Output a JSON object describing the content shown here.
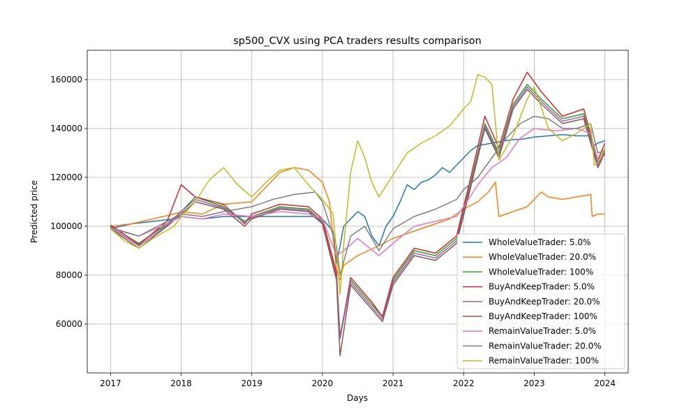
{
  "chart_data": {
    "type": "line",
    "title": "sp500_CVX using PCA traders results comparison",
    "xlabel": "Days",
    "ylabel": "Predicted price",
    "xlim": [
      2016.67,
      2024.33
    ],
    "ylim": [
      40000,
      172000
    ],
    "xticks": [
      2017,
      2018,
      2019,
      2020,
      2021,
      2022,
      2023,
      2024
    ],
    "xtick_labels": [
      "2017",
      "2018",
      "2019",
      "2020",
      "2021",
      "2022",
      "2023",
      "2024"
    ],
    "yticks": [
      60000,
      80000,
      100000,
      120000,
      140000,
      160000
    ],
    "ytick_labels": [
      "60000",
      "80000",
      "100000",
      "120000",
      "140000",
      "160000"
    ],
    "grid": true,
    "legend_position": "lower-right",
    "series": [
      {
        "name": "WholeValueTrader: 5.0%",
        "color": "#1f77b4",
        "x": [
          2017.0,
          2017.3,
          2017.6,
          2017.9,
          2018.0,
          2018.3,
          2018.6,
          2019.0,
          2019.3,
          2019.6,
          2019.9,
          2020.0,
          2020.15,
          2020.2,
          2020.25,
          2020.3,
          2020.4,
          2020.5,
          2020.6,
          2020.7,
          2020.8,
          2020.9,
          2021.0,
          2021.1,
          2021.2,
          2021.3,
          2021.4,
          2021.5,
          2021.6,
          2021.7,
          2021.8,
          2021.9,
          2022.0,
          2022.1,
          2022.2,
          2022.3,
          2022.4,
          2022.5,
          2022.6,
          2022.7,
          2022.8,
          2022.9,
          2023.0,
          2023.2,
          2023.4,
          2023.6,
          2023.8,
          2023.85,
          2023.9,
          2024.0
        ],
        "y": [
          99000,
          101000,
          102000,
          103000,
          104000,
          103000,
          104000,
          104000,
          104000,
          104000,
          104000,
          103000,
          98000,
          85000,
          92000,
          100000,
          103000,
          106000,
          104000,
          96000,
          92000,
          100000,
          104000,
          110000,
          117000,
          115000,
          118000,
          119000,
          121000,
          124000,
          122000,
          125000,
          128000,
          131000,
          133000,
          133500,
          134000,
          134500,
          135000,
          135500,
          135500,
          136000,
          136500,
          137000,
          137500,
          137000,
          137000,
          133000,
          134000,
          135000
        ]
      },
      {
        "name": "WholeValueTrader: 20.0%",
        "color": "#ff7f0e",
        "x": [
          2017.0,
          2017.3,
          2017.6,
          2017.9,
          2018.0,
          2018.3,
          2018.6,
          2019.0,
          2019.2,
          2019.4,
          2019.6,
          2019.8,
          2020.0,
          2020.1,
          2020.2,
          2020.25,
          2020.3,
          2020.5,
          2020.8,
          2021.0,
          2021.3,
          2021.6,
          2021.8,
          2022.0,
          2022.2,
          2022.35,
          2022.45,
          2022.5,
          2022.7,
          2022.9,
          2023.0,
          2023.1,
          2023.2,
          2023.4,
          2023.6,
          2023.8,
          2023.82,
          2023.9,
          2024.0
        ],
        "y": [
          100000,
          101000,
          103000,
          105000,
          106000,
          105000,
          109000,
          110000,
          116000,
          122000,
          124000,
          123000,
          118000,
          110000,
          82000,
          78000,
          84000,
          88000,
          92000,
          95000,
          98000,
          101000,
          103000,
          107000,
          110000,
          114000,
          118000,
          104000,
          106000,
          108000,
          111000,
          114000,
          112000,
          111000,
          112000,
          113000,
          104000,
          105000,
          105000
        ]
      },
      {
        "name": "WholeValueTrader: 100%",
        "color": "#2ca02c",
        "x": [
          2017.0,
          2017.4,
          2017.8,
          2018.0,
          2018.2,
          2018.6,
          2018.9,
          2019.0,
          2019.4,
          2019.8,
          2020.0,
          2020.2,
          2020.25,
          2020.4,
          2020.7,
          2020.85,
          2021.0,
          2021.3,
          2021.6,
          2021.9,
          2022.1,
          2022.3,
          2022.5,
          2022.7,
          2022.9,
          2023.1,
          2023.4,
          2023.7,
          2023.9,
          2024.0
        ],
        "y": [
          100000,
          93000,
          101000,
          106000,
          112000,
          108000,
          102000,
          104000,
          108000,
          107000,
          102000,
          80000,
          55000,
          78000,
          68000,
          63000,
          78000,
          90000,
          88000,
          95000,
          118000,
          142000,
          130000,
          150000,
          158000,
          152000,
          144000,
          146000,
          126000,
          132000
        ]
      },
      {
        "name": "BuyAndKeepTrader: 5.0%",
        "color": "#d62728",
        "x": [
          2017.0,
          2017.4,
          2017.8,
          2018.0,
          2018.2,
          2018.6,
          2018.9,
          2019.0,
          2019.4,
          2019.8,
          2020.0,
          2020.2,
          2020.25,
          2020.4,
          2020.7,
          2020.85,
          2021.0,
          2021.3,
          2021.6,
          2021.9,
          2022.1,
          2022.3,
          2022.5,
          2022.7,
          2022.9,
          2023.1,
          2023.4,
          2023.7,
          2023.9,
          2024.0
        ],
        "y": [
          100500,
          92500,
          102000,
          117000,
          112000,
          109000,
          101000,
          105000,
          109000,
          108000,
          103000,
          81000,
          54000,
          79000,
          69000,
          63000,
          79000,
          91000,
          89000,
          96000,
          120000,
          145000,
          132000,
          152000,
          163000,
          155000,
          145000,
          148000,
          127000,
          134000
        ]
      },
      {
        "name": "BuyAndKeepTrader: 20.0%",
        "color": "#9467bd",
        "x": [
          2017.0,
          2017.4,
          2017.8,
          2018.0,
          2018.2,
          2018.6,
          2018.9,
          2019.0,
          2019.4,
          2019.8,
          2020.0,
          2020.2,
          2020.25,
          2020.4,
          2020.7,
          2020.85,
          2021.0,
          2021.3,
          2021.6,
          2021.9,
          2022.1,
          2022.3,
          2022.5,
          2022.7,
          2022.9,
          2023.1,
          2023.4,
          2023.7,
          2023.9,
          2024.0
        ],
        "y": [
          99500,
          92000,
          100500,
          106000,
          111000,
          107500,
          101500,
          103500,
          107500,
          106500,
          101500,
          79000,
          54000,
          77000,
          67000,
          62000,
          77000,
          89000,
          87000,
          94000,
          117000,
          141000,
          129000,
          149000,
          157000,
          151000,
          143000,
          145000,
          125000,
          131000
        ]
      },
      {
        "name": "BuyAndKeepTrader: 100%",
        "color": "#8c564b",
        "x": [
          2017.0,
          2017.4,
          2017.8,
          2018.0,
          2018.2,
          2018.6,
          2018.9,
          2019.0,
          2019.4,
          2019.8,
          2020.0,
          2020.2,
          2020.25,
          2020.4,
          2020.7,
          2020.85,
          2021.0,
          2021.3,
          2021.6,
          2021.9,
          2022.1,
          2022.3,
          2022.5,
          2022.7,
          2022.9,
          2023.1,
          2023.4,
          2023.7,
          2023.9,
          2024.0
        ],
        "y": [
          99000,
          91000,
          100000,
          105000,
          110000,
          107000,
          100000,
          103000,
          107000,
          106000,
          101000,
          78000,
          47000,
          76000,
          66000,
          61000,
          76000,
          88000,
          86000,
          93000,
          116000,
          140000,
          128000,
          148000,
          156000,
          150000,
          142000,
          144000,
          124000,
          130000
        ]
      },
      {
        "name": "RemainValueTrader: 5.0%",
        "color": "#e377c2",
        "x": [
          2017.0,
          2017.4,
          2017.8,
          2018.0,
          2018.3,
          2018.6,
          2019.0,
          2019.4,
          2019.8,
          2020.0,
          2020.2,
          2020.3,
          2020.5,
          2020.8,
          2021.0,
          2021.3,
          2021.6,
          2021.9,
          2022.0,
          2022.2,
          2022.4,
          2022.6,
          2022.8,
          2023.0,
          2023.3,
          2023.6,
          2023.8,
          2023.9,
          2024.0
        ],
        "y": [
          99000,
          96000,
          101000,
          104000,
          103000,
          105000,
          104000,
          106000,
          105000,
          103000,
          88000,
          90000,
          95000,
          88000,
          93000,
          100000,
          102000,
          104000,
          108000,
          117000,
          124000,
          128000,
          136000,
          140000,
          139000,
          140000,
          138000,
          127000,
          129000
        ]
      },
      {
        "name": "RemainValueTrader: 20.0%",
        "color": "#7f7f7f",
        "x": [
          2017.0,
          2017.4,
          2017.8,
          2018.0,
          2018.3,
          2018.6,
          2019.0,
          2019.3,
          2019.6,
          2019.9,
          2020.0,
          2020.2,
          2020.25,
          2020.4,
          2020.6,
          2020.8,
          2021.0,
          2021.3,
          2021.6,
          2021.9,
          2022.0,
          2022.2,
          2022.4,
          2022.6,
          2022.8,
          2023.0,
          2023.2,
          2023.4,
          2023.6,
          2023.8,
          2023.9,
          2024.0
        ],
        "y": [
          99500,
          96000,
          102000,
          105000,
          104000,
          106000,
          108000,
          111000,
          113000,
          114000,
          110000,
          92000,
          80000,
          96000,
          100000,
          90000,
          99000,
          104000,
          107000,
          111000,
          115000,
          120000,
          128000,
          136000,
          142000,
          145000,
          144000,
          140000,
          140000,
          142000,
          130000,
          131000
        ]
      },
      {
        "name": "RemainValueTrader: 100%",
        "color": "#bcbd22",
        "x": [
          2017.0,
          2017.2,
          2017.4,
          2017.6,
          2017.9,
          2018.0,
          2018.2,
          2018.4,
          2018.6,
          2018.8,
          2019.0,
          2019.2,
          2019.4,
          2019.6,
          2019.8,
          2020.0,
          2020.15,
          2020.2,
          2020.25,
          2020.3,
          2020.4,
          2020.5,
          2020.6,
          2020.7,
          2020.8,
          2021.0,
          2021.2,
          2021.4,
          2021.6,
          2021.8,
          2022.0,
          2022.1,
          2022.2,
          2022.3,
          2022.4,
          2022.5,
          2022.7,
          2022.9,
          2023.0,
          2023.2,
          2023.4,
          2023.6,
          2023.8,
          2023.85,
          2023.9,
          2024.0
        ],
        "y": [
          99000,
          94000,
          91000,
          95000,
          100000,
          104000,
          110000,
          119000,
          124000,
          117000,
          112000,
          118000,
          123000,
          124000,
          117000,
          111000,
          105000,
          90000,
          72000,
          92000,
          122000,
          135000,
          128000,
          118000,
          112000,
          121000,
          130000,
          134000,
          137000,
          141000,
          148000,
          151000,
          162000,
          161000,
          158000,
          127000,
          137000,
          152000,
          157000,
          140000,
          135000,
          138000,
          142000,
          125000,
          126000,
          132000
        ]
      }
    ]
  }
}
